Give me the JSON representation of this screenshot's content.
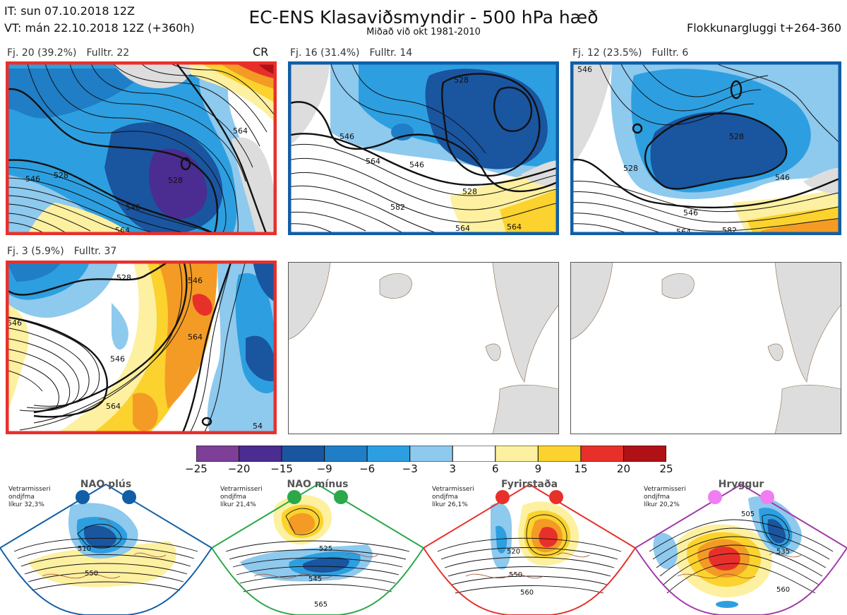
{
  "header": {
    "it_line": "IT: sun 07.10.2018 12Z",
    "vt_line": "VT: mán 22.10.2018 12Z  (+360h)",
    "title": "EC-ENS Klasaviðsmyndir - 500 hPa hæð",
    "subtitle": "Miðað við okt 1981-2010",
    "window": "Flokkunargluggi t+264-360"
  },
  "clusters": [
    {
      "cluster": "Fj. 20 (39.2%)",
      "members": "Fulltr. 22",
      "tag": "CR",
      "frame_color": "#e8302b",
      "contour_labels": [
        "528",
        "546",
        "564",
        "528",
        "546",
        "564",
        "528"
      ]
    },
    {
      "cluster": "Fj. 16 (31.4%)",
      "members": "Fulltr. 14",
      "tag": "",
      "frame_color": "#115ea6",
      "contour_labels": [
        "546",
        "564",
        "582",
        "528",
        "546",
        "528",
        "564",
        "564"
      ]
    },
    {
      "cluster": "Fj. 12 (23.5%)",
      "members": "Fulltr. 6",
      "tag": "",
      "frame_color": "#115ea6",
      "contour_labels": [
        "528",
        "528",
        "546",
        "546",
        "546",
        "564",
        "582"
      ]
    },
    {
      "cluster": "Fj. 3 (5.9%)",
      "members": "Fulltr. 37",
      "tag": "",
      "frame_color": "#e8302b",
      "contour_labels": [
        "528",
        "546",
        "546",
        "546",
        "564",
        "564",
        "54"
      ]
    }
  ],
  "colorbar": {
    "colors": [
      "#7d3f98",
      "#4b2c91",
      "#1a55a0",
      "#1f7ec6",
      "#2d9fe0",
      "#8ec9ee",
      "#ffffff",
      "#fdf0a0",
      "#fbd22e",
      "#f39b25",
      "#ef4f2c",
      "#e8302b",
      "#b01117"
    ],
    "labels": [
      "−25",
      "−20",
      "−15",
      "−9",
      "−6",
      "−3",
      "3",
      "6",
      "9",
      "15",
      "20",
      "25"
    ]
  },
  "regimes": [
    {
      "name": "NAO plús",
      "note": [
        "Vetrarmisseri",
        "ondjfma",
        "líkur 32,3%"
      ],
      "color": "#115ea6",
      "contour_labels": [
        "510",
        "550"
      ]
    },
    {
      "name": "NAO mínus",
      "note": [
        "Vetrarmisseri",
        "ondjfma",
        "líkur 21,4%"
      ],
      "color": "#2aa84a",
      "contour_labels": [
        "525",
        "545",
        "565"
      ]
    },
    {
      "name": "Fyrirstaða",
      "note": [
        "Vetrarmisseri",
        "ondjfma",
        "líkur 26,1%"
      ],
      "color": "#e8302b",
      "contour_labels": [
        "520",
        "550",
        "560"
      ]
    },
    {
      "name": "Hryggur",
      "note": [
        "Vetrarmisseri",
        "ondjfma",
        "líkur 20,2%"
      ],
      "color": "#a03ba8",
      "contour_labels": [
        "505",
        "535",
        "560"
      ]
    }
  ]
}
